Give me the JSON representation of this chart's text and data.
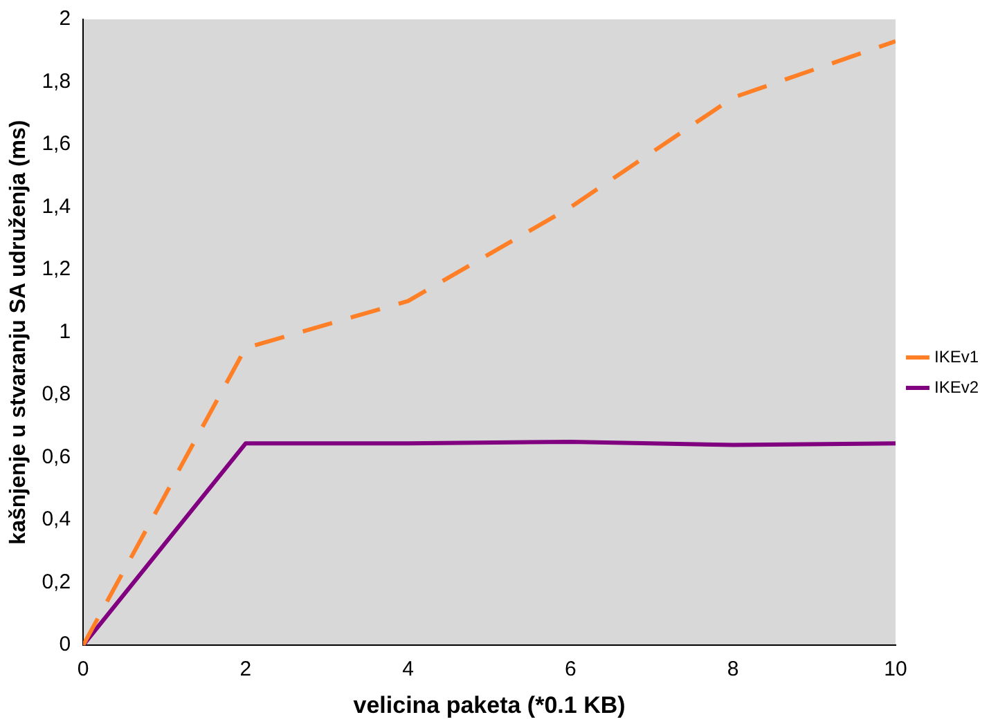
{
  "chart_data": {
    "type": "line",
    "xlabel": "velicina paketa (*0.1 KB)",
    "ylabel": "kašnjenje u stvaranju SA udruženja (ms)",
    "x": [
      0,
      2,
      4,
      6,
      8,
      10
    ],
    "series": [
      {
        "name": "IKEv1",
        "color": "#ff7f27",
        "line_style": "dashed",
        "values": [
          0,
          0.95,
          1.1,
          1.4,
          1.75,
          1.93
        ]
      },
      {
        "name": "IKEv2",
        "color": "#800080",
        "line_style": "solid",
        "values": [
          0,
          0.645,
          0.645,
          0.65,
          0.64,
          0.645
        ]
      }
    ],
    "xlim": [
      0,
      10
    ],
    "xticks": [
      0,
      2,
      4,
      6,
      8,
      10
    ],
    "ylim": [
      0,
      2
    ],
    "yticks": [
      0,
      {
        "value": 0.2,
        "label": "0,2"
      },
      {
        "value": 0.4,
        "label": "0,4"
      },
      {
        "value": 0.6,
        "label": "0,6"
      },
      {
        "value": 0.8,
        "label": "0,8"
      },
      1,
      {
        "value": 1.2,
        "label": "1,2"
      },
      {
        "value": 1.4,
        "label": "1,4"
      },
      {
        "value": 1.6,
        "label": "1,6"
      },
      {
        "value": 1.8,
        "label": "1,8"
      },
      2
    ],
    "grid": false,
    "legend": "right",
    "marker": "none"
  }
}
